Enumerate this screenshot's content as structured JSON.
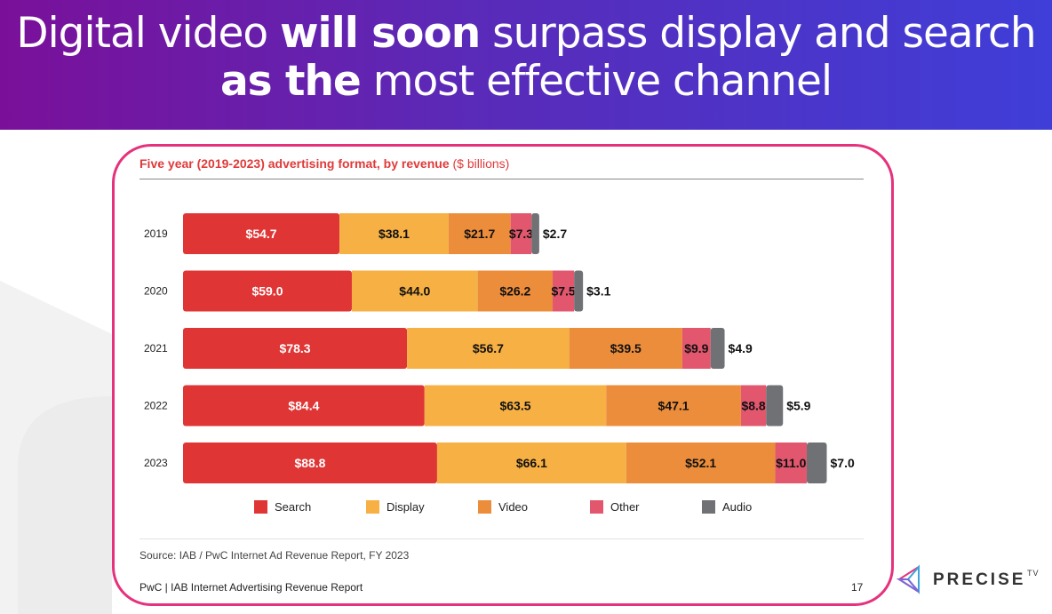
{
  "header": {
    "line1_pre": "Digital video ",
    "line1_bold": "will soon",
    "line1_post": " surpass display and search",
    "line2_bold": "as the",
    "line2_post": " most effective channel"
  },
  "chart_header": {
    "title": "Five year (2019-2023) advertising format, by revenue",
    "unit": " ($ billions)"
  },
  "chart_data": {
    "type": "bar",
    "orientation": "horizontal",
    "stacked": true,
    "categories": [
      "2019",
      "2020",
      "2021",
      "2022",
      "2023"
    ],
    "series": [
      {
        "name": "Search",
        "color": "#e03535",
        "values": [
          54.7,
          59.0,
          78.3,
          84.4,
          88.8
        ],
        "labels": [
          "$54.7",
          "$59.0",
          "$78.3",
          "$84.4",
          "$88.8"
        ]
      },
      {
        "name": "Display",
        "color": "#f6b043",
        "values": [
          38.1,
          44.0,
          56.7,
          63.5,
          66.1
        ],
        "labels": [
          "$38.1",
          "$44.0",
          "$56.7",
          "$63.5",
          "$66.1"
        ]
      },
      {
        "name": "Video",
        "color": "#ec8d3b",
        "values": [
          21.7,
          26.2,
          39.5,
          47.1,
          52.1
        ],
        "labels": [
          "$21.7",
          "$26.2",
          "$39.5",
          "$47.1",
          "$52.1"
        ]
      },
      {
        "name": "Other",
        "color": "#e2576d",
        "values": [
          7.3,
          7.5,
          9.9,
          8.8,
          11.0
        ],
        "labels": [
          "$7.3",
          "$7.5",
          "$9.9",
          "$8.8",
          "$11.0"
        ]
      },
      {
        "name": "Audio",
        "color": "#6f7174",
        "values": [
          2.7,
          3.1,
          4.9,
          5.9,
          7.0
        ],
        "labels": [
          "$2.7",
          "$3.1",
          "$4.9",
          "$5.9",
          "$7.0"
        ]
      }
    ],
    "legend_position": "bottom",
    "grid": false
  },
  "source": "Source: IAB / PwC Internet Ad Revenue Report, FY 2023",
  "footer": {
    "left": "PwC | IAB Internet Advertising Revenue Report",
    "page": "17"
  },
  "logo": {
    "name": "PRECISE",
    "sup": "TV"
  },
  "colors": {
    "accent_border": "#e6317c",
    "header_gradient_start": "#7a109a",
    "header_gradient_end": "#3f3ed8",
    "title_red": "#e03a3a"
  }
}
